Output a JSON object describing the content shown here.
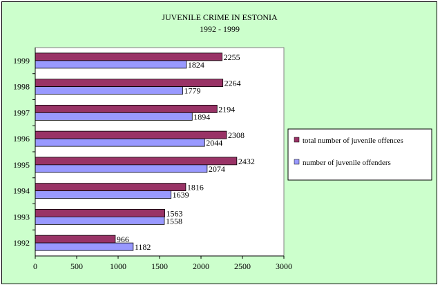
{
  "chart_data": {
    "type": "bar",
    "orientation": "horizontal",
    "title": "JUVENILE CRIME IN ESTONIA",
    "subtitle": "1992 - 1999",
    "categories": [
      "1999",
      "1998",
      "1997",
      "1996",
      "1995",
      "1994",
      "1993",
      "1992"
    ],
    "series": [
      {
        "name": "total number of juvenile offences",
        "color": "#993366",
        "values": [
          2255,
          2264,
          2194,
          2308,
          2432,
          1816,
          1563,
          966
        ]
      },
      {
        "name": "number of juvenile offenders",
        "color": "#9999ff",
        "values": [
          1824,
          1779,
          1894,
          2044,
          2074,
          1639,
          1558,
          1182
        ]
      }
    ],
    "xlim": [
      0,
      3000
    ],
    "xticks": [
      "0",
      "500",
      "1000",
      "1500",
      "2000",
      "2500",
      "3000"
    ],
    "grid": false,
    "legend_position": "right",
    "plot_background": "#ffffff",
    "chart_background": "#ccffcc"
  }
}
